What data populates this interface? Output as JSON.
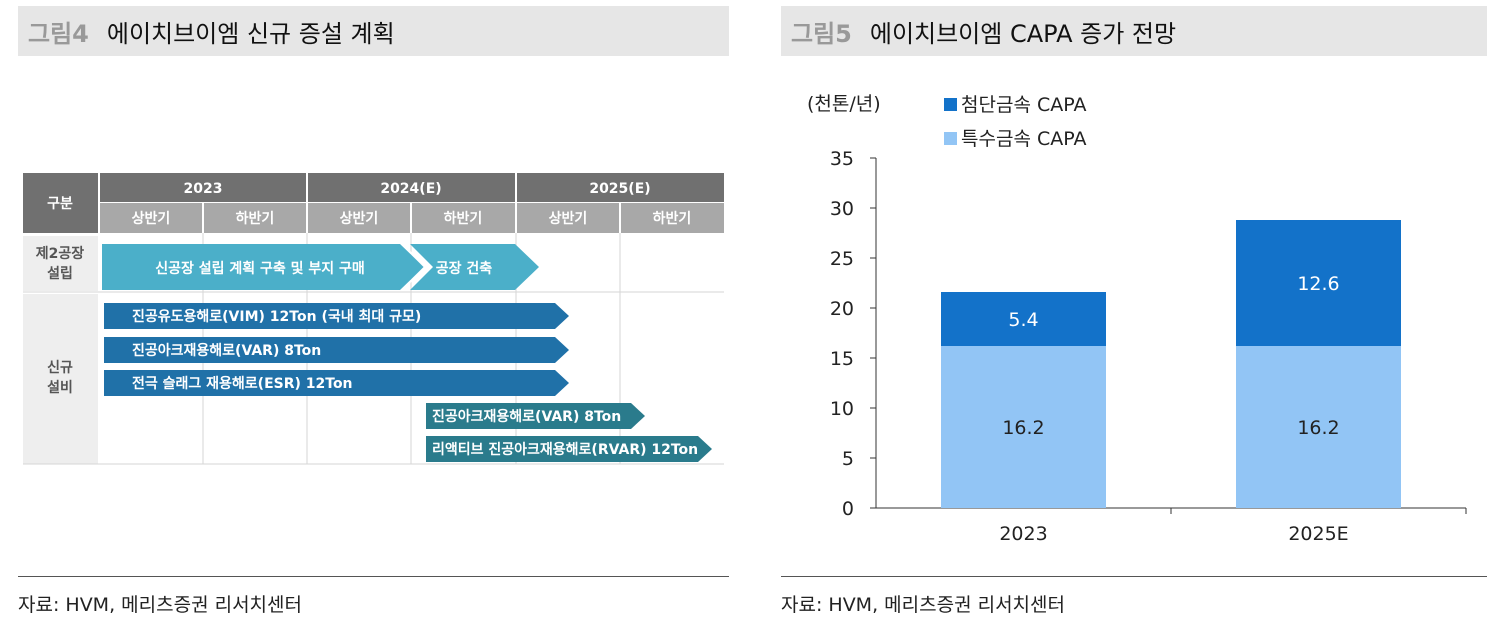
{
  "left": {
    "fig_label": "그림4",
    "title": "에이치브이엠 신규 증설 계획",
    "source": "자료: HVM, 메리츠증권 리서치센터",
    "table": {
      "category_header": "구분",
      "years": [
        "2023",
        "2024(E)",
        "2025(E)"
      ],
      "halves": [
        "상반기",
        "하반기",
        "상반기",
        "하반기",
        "상반기",
        "하반기"
      ],
      "row1_label": "제2공장\n설립",
      "row2_label": "신규\n설비",
      "plant_arrows": [
        "신공장 설립 계획 구축 및 부지 구매",
        "공장 건축"
      ],
      "equipment_arrows": [
        "진공유도용해로(VIM) 12Ton (국내 최대 규모)",
        "진공아크재용해로(VAR) 8Ton",
        "전극 슬래그 재용해로(ESR) 12Ton",
        "진공아크재용해로(VAR) 8Ton",
        "리액티브 진공아크재용해로(RVAR) 12Ton"
      ]
    }
  },
  "right": {
    "fig_label": "그림5",
    "title": "에이치브이엠 CAPA 증가 전망",
    "source": "자료: HVM, 메리츠증권 리서치센터"
  },
  "chart_data": {
    "type": "bar",
    "stacked": true,
    "title": "에이치브이엠 CAPA 증가 전망",
    "unit_label": "(천톤/년)",
    "categories": [
      "2023",
      "2025E"
    ],
    "series": [
      {
        "name": "특수금속 CAPA",
        "values": [
          16.2,
          16.2
        ],
        "color": "#92c5f5"
      },
      {
        "name": "첨단금속 CAPA",
        "values": [
          5.4,
          12.6
        ],
        "color": "#1372c9"
      }
    ],
    "ylim": [
      0,
      35
    ],
    "yticks": [
      0,
      5,
      10,
      15,
      20,
      25,
      30,
      35
    ],
    "legend_order": [
      "첨단금속 CAPA",
      "특수금속 CAPA"
    ],
    "legend_position": "top-left"
  }
}
